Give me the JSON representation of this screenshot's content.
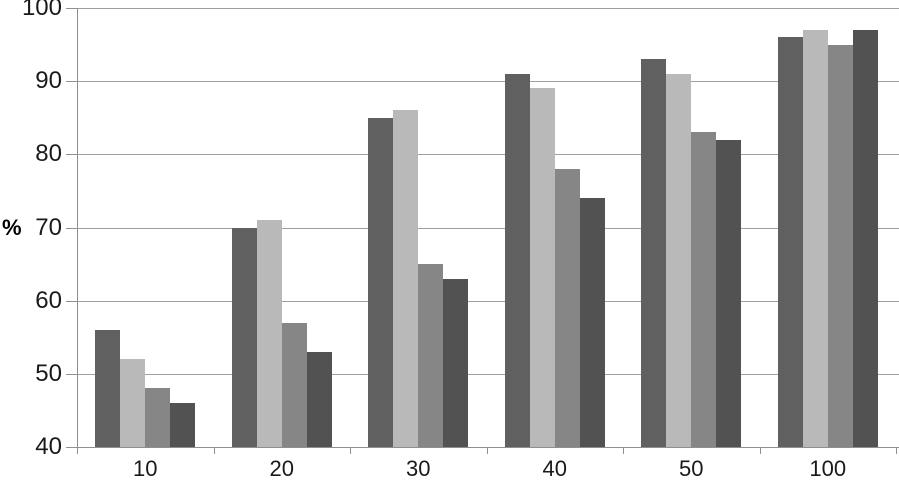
{
  "chart_data": {
    "type": "bar",
    "title": "",
    "xlabel": "",
    "ylabel": "%",
    "categories": [
      "10",
      "20",
      "30",
      "40",
      "50",
      "100"
    ],
    "series": [
      {
        "name": "",
        "color": "#606060",
        "values": [
          56,
          70,
          85,
          91,
          93,
          96
        ]
      },
      {
        "name": "",
        "color": "#b9b9b9",
        "values": [
          52,
          71,
          86,
          89,
          91,
          97
        ]
      },
      {
        "name": "",
        "color": "#868686",
        "values": [
          48,
          57,
          65,
          78,
          83,
          95
        ]
      },
      {
        "name": "",
        "color": "#525252",
        "values": [
          46,
          53,
          63,
          74,
          82,
          97
        ]
      }
    ],
    "ylim": [
      40,
      100
    ],
    "yticks": [
      100,
      90,
      80,
      70,
      60,
      50,
      40
    ],
    "grid": true,
    "legend": false,
    "colors": {
      "grid_color": "#a0a0a0",
      "axis_color": "#8f8f8f",
      "text_color": "#1a1a1a",
      "background": "#ffffff"
    }
  }
}
